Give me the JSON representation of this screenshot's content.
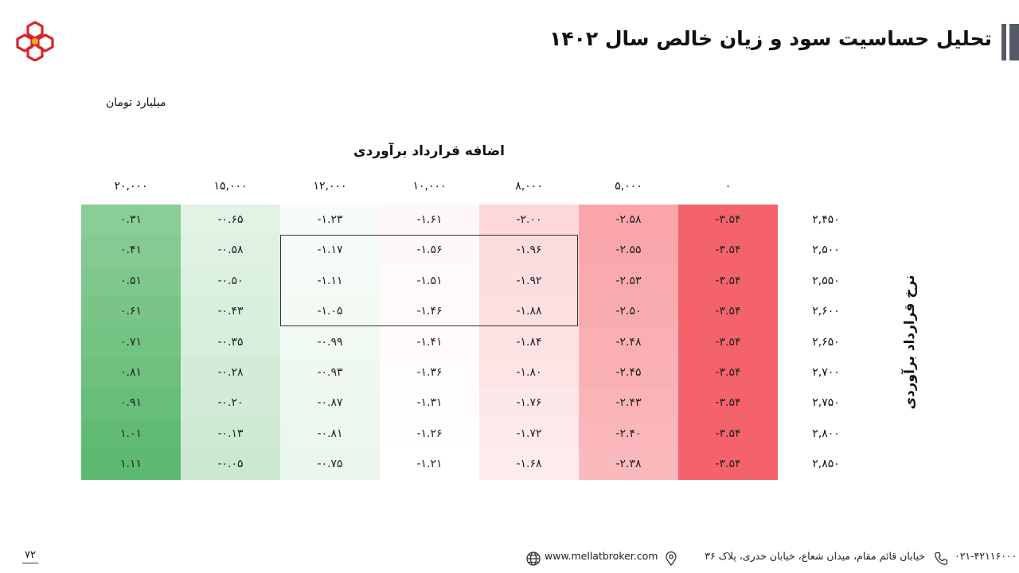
{
  "title": "تحلیل حساسیت سود و زیان خالص سال ۱۴۰۲",
  "unit": "میلیارد تومان",
  "column_axis_title": "اضافه قرارداد برآوردی",
  "row_axis_title": "نرخ قرارداد برآوردی",
  "column_headers": [
    "۲۰,۰۰۰",
    "۱۵,۰۰۰",
    "۱۲,۰۰۰",
    "۱۰,۰۰۰",
    "۸,۰۰۰",
    "۵,۰۰۰",
    "۰"
  ],
  "row_headers": [
    "۲,۴۵۰",
    "۲,۵۰۰",
    "۲,۵۵۰",
    "۲,۶۰۰",
    "۲,۶۵۰",
    "۲,۷۰۰",
    "۲,۷۵۰",
    "۲,۸۰۰",
    "۲,۸۵۰"
  ],
  "cells": [
    [
      "۰.۳۱",
      "-۰.۶۵",
      "-۱.۲۳",
      "-۱.۶۱",
      "-۲.۰۰",
      "-۲.۵۸",
      "-۳.۵۴"
    ],
    [
      "۰.۴۱",
      "-۰.۵۸",
      "-۱.۱۷",
      "-۱.۵۶",
      "-۱.۹۶",
      "-۲.۵۵",
      "-۳.۵۴"
    ],
    [
      "۰.۵۱",
      "-۰.۵۰",
      "-۱.۱۱",
      "-۱.۵۱",
      "-۱.۹۲",
      "-۲.۵۳",
      "-۳.۵۴"
    ],
    [
      "۰.۶۱",
      "-۰.۴۳",
      "-۱.۰۵",
      "-۱.۴۶",
      "-۱.۸۸",
      "-۲.۵۰",
      "-۳.۵۴"
    ],
    [
      "۰.۷۱",
      "-۰.۳۵",
      "-۰.۹۹",
      "-۱.۴۱",
      "-۱.۸۴",
      "-۲.۴۸",
      "-۳.۵۴"
    ],
    [
      "۰.۸۱",
      "-۰.۲۸",
      "-۰.۹۳",
      "-۱.۳۶",
      "-۱.۸۰",
      "-۲.۴۵",
      "-۳.۵۴"
    ],
    [
      "۰.۹۱",
      "-۰.۲۰",
      "-۰.۸۷",
      "-۱.۳۱",
      "-۱.۷۶",
      "-۲.۴۳",
      "-۳.۵۴"
    ],
    [
      "۱.۰۱",
      "-۰.۱۳",
      "-۰.۸۱",
      "-۱.۲۶",
      "-۱.۷۲",
      "-۲.۴۰",
      "-۳.۵۴"
    ],
    [
      "۱.۱۱",
      "-۰.۰۵",
      "-۰.۷۵",
      "-۱.۲۱",
      "-۱.۶۸",
      "-۲.۳۸",
      "-۳.۵۴"
    ]
  ],
  "colors": {
    "positive": "#5cb96f",
    "negative": "#f4636b",
    "neutral": "#ffffff",
    "title_accent": "#555b66",
    "logo": "#d8232a"
  },
  "footer": {
    "page_number": "۷۲",
    "website": "www.mellatbroker.com",
    "address": "خیابان قائم مقام، میدان شعاع، خیابان خدری، پلاک ۳۶",
    "phone": "۰۲۱-۴۲۱۱۶۰۰۰"
  }
}
